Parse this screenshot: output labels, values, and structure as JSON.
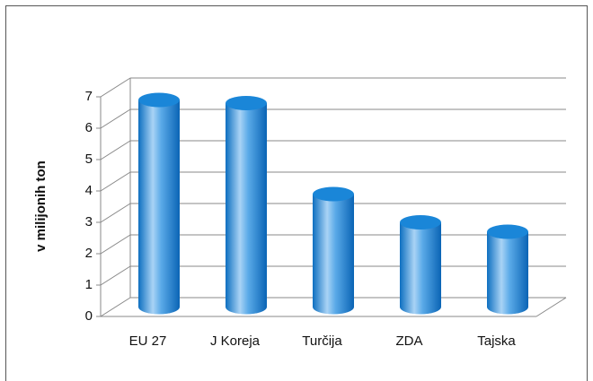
{
  "chart_data": {
    "type": "bar3d-cylinder",
    "y_label": "v milijonih ton",
    "categories": [
      "EU 27",
      "J Koreja",
      "Turčija",
      "ZDA",
      "Tajska"
    ],
    "values": [
      6.6,
      6.5,
      3.6,
      2.7,
      2.4
    ],
    "color": "#1a86d8",
    "ylim": [
      0,
      7
    ],
    "yticks": [
      0,
      1,
      2,
      3,
      4,
      5,
      6,
      7
    ],
    "grid": true
  }
}
